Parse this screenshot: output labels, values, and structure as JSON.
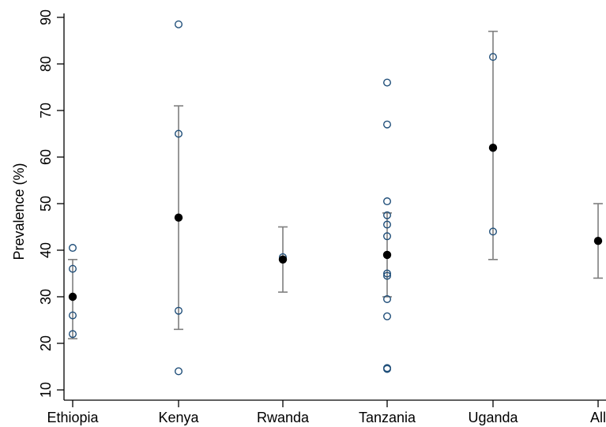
{
  "chart_data": {
    "type": "scatter",
    "title": "",
    "xlabel": "",
    "ylabel": "Prevalence (%)",
    "ylim": [
      10,
      90
    ],
    "yticks": [
      10,
      20,
      30,
      40,
      50,
      60,
      70,
      80,
      90
    ],
    "grid": false,
    "legend": "none",
    "categories": [
      "Ethiopia",
      "Kenya",
      "Rwanda",
      "Tanzania",
      "Uganda",
      "All"
    ],
    "studies": [
      {
        "country": "Ethiopia",
        "values": [
          40.5,
          36,
          26,
          22
        ]
      },
      {
        "country": "Kenya",
        "values": [
          88.5,
          65,
          27,
          14
        ]
      },
      {
        "country": "Rwanda",
        "values": [
          38.5
        ]
      },
      {
        "country": "Tanzania",
        "values": [
          76,
          67,
          50.5,
          47.5,
          45.5,
          43,
          35,
          34.5,
          29.5,
          25.8,
          14.7,
          14.5
        ]
      },
      {
        "country": "Uganda",
        "values": [
          81.5,
          62,
          44
        ]
      },
      {
        "country": "All",
        "values": []
      }
    ],
    "pooled": [
      {
        "country": "Ethiopia",
        "estimate": 30,
        "ci_low": 21,
        "ci_high": 38
      },
      {
        "country": "Kenya",
        "estimate": 47,
        "ci_low": 23,
        "ci_high": 71
      },
      {
        "country": "Rwanda",
        "estimate": 38,
        "ci_low": 31,
        "ci_high": 45
      },
      {
        "country": "Tanzania",
        "estimate": 39,
        "ci_low": 30,
        "ci_high": 48
      },
      {
        "country": "Uganda",
        "estimate": 62,
        "ci_low": 38,
        "ci_high": 87
      },
      {
        "country": "All",
        "estimate": 42,
        "ci_low": 34,
        "ci_high": 50
      }
    ],
    "colors": {
      "study_marker": "#1f4e79",
      "pooled_marker": "#000000",
      "ci_line": "#7f7f7f",
      "axis": "#000000"
    }
  }
}
